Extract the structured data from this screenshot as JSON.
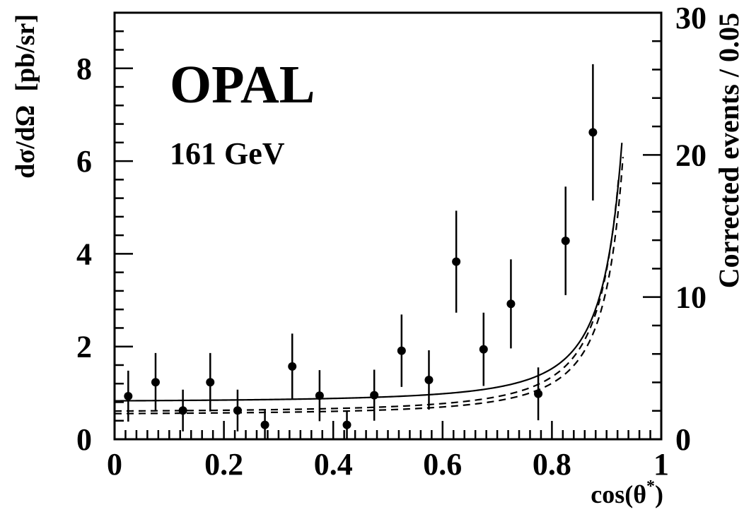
{
  "chart_data": {
    "type": "scatter",
    "title": "",
    "annotations": {
      "experiment": "OPAL",
      "energy": "161 GeV"
    },
    "xlabel": "cos(θ*)",
    "xlabel_base": "cos(θ",
    "xlabel_sup": "*",
    "xlabel_close": ")",
    "ylabel": "dσ/dΩ  [pb/sr]",
    "ylabel_right": "Corrected events / 0.05",
    "xlim": [
      0,
      1
    ],
    "ylim": [
      0,
      9.2
    ],
    "ylim_right": [
      0,
      30
    ],
    "x_ticks": [
      {
        "value": 0,
        "label": "0"
      },
      {
        "value": 0.2,
        "label": "0.2"
      },
      {
        "value": 0.4,
        "label": "0.4"
      },
      {
        "value": 0.6,
        "label": "0.6"
      },
      {
        "value": 0.8,
        "label": "0.8"
      },
      {
        "value": 1,
        "label": "1"
      }
    ],
    "y_ticks": [
      {
        "value": 0,
        "label": "0"
      },
      {
        "value": 2,
        "label": "2"
      },
      {
        "value": 4,
        "label": "4"
      },
      {
        "value": 6,
        "label": "6"
      },
      {
        "value": 8,
        "label": "8"
      }
    ],
    "y_right_ticks": [
      {
        "value": 0,
        "label": "0"
      },
      {
        "value": 10,
        "label": "10"
      },
      {
        "value": 20,
        "label": "20"
      },
      {
        "value": 30,
        "label": "30"
      }
    ],
    "grid": false,
    "legend": "none",
    "series": [
      {
        "type": "points_with_errors",
        "points": [
          {
            "x": 0.025,
            "y": 0.93,
            "err": 0.55
          },
          {
            "x": 0.075,
            "y": 1.23,
            "err": 0.63
          },
          {
            "x": 0.125,
            "y": 0.62,
            "err": 0.45
          },
          {
            "x": 0.175,
            "y": 1.23,
            "err": 0.63
          },
          {
            "x": 0.225,
            "y": 0.62,
            "err": 0.45
          },
          {
            "x": 0.275,
            "y": 0.31,
            "err": 0.31
          },
          {
            "x": 0.325,
            "y": 1.57,
            "err": 0.71
          },
          {
            "x": 0.375,
            "y": 0.94,
            "err": 0.55
          },
          {
            "x": 0.425,
            "y": 0.31,
            "err": 0.31
          },
          {
            "x": 0.475,
            "y": 0.95,
            "err": 0.55
          },
          {
            "x": 0.525,
            "y": 1.91,
            "err": 0.78
          },
          {
            "x": 0.575,
            "y": 1.28,
            "err": 0.64
          },
          {
            "x": 0.625,
            "y": 3.83,
            "err": 1.1
          },
          {
            "x": 0.675,
            "y": 1.94,
            "err": 0.79
          },
          {
            "x": 0.725,
            "y": 2.92,
            "err": 0.96
          },
          {
            "x": 0.775,
            "y": 0.98,
            "err": 0.57
          },
          {
            "x": 0.825,
            "y": 4.28,
            "err": 1.17
          },
          {
            "x": 0.875,
            "y": 6.62,
            "err": 1.47
          }
        ]
      },
      {
        "type": "curve",
        "style": "solid",
        "a": 0.8,
        "b": 0.029,
        "x_max": 0.928
      },
      {
        "type": "curve",
        "style": "dashed",
        "a": 0.545,
        "b": 0.029,
        "c": 1.06,
        "x_max": 0.922
      },
      {
        "type": "curve",
        "style": "dashed",
        "a": 0.56,
        "b": 0.029,
        "c": 0.94,
        "x_max": 0.93
      }
    ]
  }
}
